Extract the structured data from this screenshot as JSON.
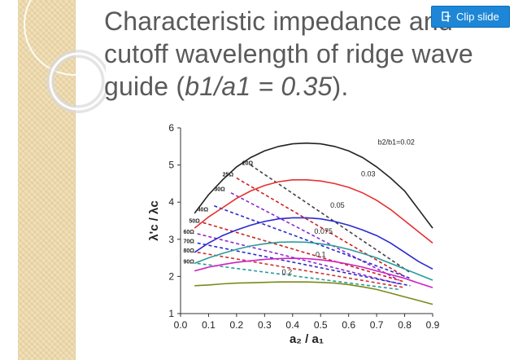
{
  "slide": {
    "title_part1": "Characteristic impedance and cutoff wavelength of ridge wave guide (",
    "title_italic": "b1/a1 = 0.35",
    "title_part2": ")."
  },
  "toolbar": {
    "clip_label": "Clip slide",
    "clip_icon": "clip-icon"
  },
  "colors": {
    "button": "#1d86d6",
    "sidebar": "#f1e0b8",
    "title": "#5a5a5a"
  },
  "chart_data": {
    "type": "line",
    "xlabel": "a₂ / a₁",
    "ylabel": "λ'c / λc",
    "xlim": [
      0.0,
      0.9
    ],
    "ylim": [
      1,
      6
    ],
    "x_ticks": [
      "0.0",
      "0.1",
      "0.2",
      "0.3",
      "0.4",
      "0.5",
      "0.6",
      "0.7",
      "0.8",
      "0.9"
    ],
    "y_ticks": [
      "1",
      "2",
      "3",
      "4",
      "5",
      "6"
    ],
    "solid_series": [
      {
        "name": "b2/b1=0.02",
        "color": "#222222",
        "x": [
          0.05,
          0.1,
          0.15,
          0.2,
          0.25,
          0.3,
          0.35,
          0.4,
          0.45,
          0.5,
          0.55,
          0.6,
          0.65,
          0.7,
          0.75,
          0.8,
          0.85,
          0.9
        ],
        "y": [
          3.7,
          4.2,
          4.6,
          4.95,
          5.2,
          5.38,
          5.5,
          5.57,
          5.59,
          5.57,
          5.5,
          5.38,
          5.2,
          4.95,
          4.65,
          4.3,
          3.8,
          3.3
        ]
      },
      {
        "name": "0.03",
        "color": "#e53030",
        "x": [
          0.05,
          0.1,
          0.15,
          0.2,
          0.25,
          0.3,
          0.35,
          0.4,
          0.45,
          0.5,
          0.55,
          0.6,
          0.65,
          0.7,
          0.75,
          0.8,
          0.85,
          0.9
        ],
        "y": [
          3.3,
          3.6,
          3.85,
          4.1,
          4.3,
          4.45,
          4.55,
          4.6,
          4.6,
          4.57,
          4.5,
          4.4,
          4.25,
          4.05,
          3.8,
          3.5,
          3.2,
          2.9
        ]
      },
      {
        "name": "0.05",
        "color": "#2a2ad0",
        "x": [
          0.05,
          0.1,
          0.15,
          0.2,
          0.25,
          0.3,
          0.35,
          0.4,
          0.45,
          0.5,
          0.55,
          0.6,
          0.65,
          0.7,
          0.75,
          0.8,
          0.85,
          0.9
        ],
        "y": [
          2.65,
          2.9,
          3.1,
          3.25,
          3.38,
          3.48,
          3.55,
          3.58,
          3.58,
          3.55,
          3.48,
          3.38,
          3.25,
          3.1,
          2.9,
          2.65,
          2.4,
          2.2
        ]
      },
      {
        "name": "0.075",
        "color": "#2a9a9a",
        "x": [
          0.05,
          0.1,
          0.15,
          0.2,
          0.25,
          0.3,
          0.35,
          0.4,
          0.45,
          0.5,
          0.55,
          0.6,
          0.65,
          0.7,
          0.75,
          0.8,
          0.85,
          0.9
        ],
        "y": [
          2.35,
          2.5,
          2.62,
          2.73,
          2.82,
          2.88,
          2.92,
          2.93,
          2.92,
          2.88,
          2.82,
          2.73,
          2.62,
          2.5,
          2.35,
          2.2,
          2.05,
          1.9
        ]
      },
      {
        "name": "0.1",
        "color": "#d020c0",
        "x": [
          0.05,
          0.1,
          0.15,
          0.2,
          0.25,
          0.3,
          0.35,
          0.4,
          0.45,
          0.5,
          0.55,
          0.6,
          0.65,
          0.7,
          0.75,
          0.8,
          0.85,
          0.9
        ],
        "y": [
          2.15,
          2.25,
          2.32,
          2.38,
          2.42,
          2.46,
          2.48,
          2.49,
          2.48,
          2.45,
          2.4,
          2.33,
          2.25,
          2.15,
          2.05,
          1.95,
          1.82,
          1.7
        ]
      },
      {
        "name": "0.2",
        "color": "#7a8a1a",
        "x": [
          0.05,
          0.1,
          0.15,
          0.2,
          0.25,
          0.3,
          0.35,
          0.4,
          0.45,
          0.5,
          0.55,
          0.6,
          0.65,
          0.7,
          0.75,
          0.8,
          0.85,
          0.9
        ],
        "y": [
          1.75,
          1.77,
          1.8,
          1.82,
          1.83,
          1.84,
          1.85,
          1.85,
          1.85,
          1.84,
          1.82,
          1.78,
          1.72,
          1.65,
          1.55,
          1.45,
          1.35,
          1.25
        ]
      }
    ],
    "dashed_series": [
      {
        "name": "20Ω",
        "color": "#444444",
        "x": [
          0.25,
          0.82
        ],
        "y": [
          5.0,
          2.1
        ]
      },
      {
        "name": "25Ω",
        "color": "#cc2222",
        "x": [
          0.2,
          0.8
        ],
        "y": [
          4.65,
          2.0
        ]
      },
      {
        "name": "30Ω",
        "color": "#8a2ad0",
        "x": [
          0.18,
          0.78
        ],
        "y": [
          4.25,
          1.9
        ]
      },
      {
        "name": "40Ω",
        "color": "#2a2ad0",
        "x": [
          0.12,
          0.82
        ],
        "y": [
          3.9,
          1.95
        ]
      },
      {
        "name": "50Ω",
        "color": "#cc2222",
        "x": [
          0.08,
          0.8
        ],
        "y": [
          3.45,
          1.85
        ]
      },
      {
        "name": "60Ω",
        "color": "#8a2ad0",
        "x": [
          0.06,
          0.78
        ],
        "y": [
          3.15,
          1.8
        ]
      },
      {
        "name": "70Ω",
        "color": "#2a2ad0",
        "x": [
          0.06,
          0.82
        ],
        "y": [
          2.9,
          1.75
        ]
      },
      {
        "name": "80Ω",
        "color": "#d03030",
        "x": [
          0.06,
          0.8
        ],
        "y": [
          2.65,
          1.7
        ]
      },
      {
        "name": "90Ω",
        "color": "#2a9a9a",
        "x": [
          0.06,
          0.78
        ],
        "y": [
          2.35,
          1.65
        ]
      }
    ],
    "series_labels": [
      {
        "text": "b2/b1=0.02",
        "x": 0.77,
        "y": 5.55
      },
      {
        "text": "0.03",
        "x": 0.67,
        "y": 4.7
      },
      {
        "text": "0.05",
        "x": 0.56,
        "y": 3.85
      },
      {
        "text": "0.075",
        "x": 0.51,
        "y": 3.15
      },
      {
        "text": "0.1",
        "x": 0.5,
        "y": 2.52
      },
      {
        "text": "0.2",
        "x": 0.38,
        "y": 2.05
      }
    ],
    "impedance_labels": [
      {
        "text": "20Ω",
        "x": 0.22,
        "y": 5.0
      },
      {
        "text": "25Ω",
        "x": 0.15,
        "y": 4.7
      },
      {
        "text": "30Ω",
        "x": 0.12,
        "y": 4.3
      },
      {
        "text": "40Ω",
        "x": 0.06,
        "y": 3.75
      },
      {
        "text": "50Ω",
        "x": 0.03,
        "y": 3.45
      },
      {
        "text": "60Ω",
        "x": 0.01,
        "y": 3.15
      },
      {
        "text": "70Ω",
        "x": 0.01,
        "y": 2.9
      },
      {
        "text": "80Ω",
        "x": 0.01,
        "y": 2.65
      },
      {
        "text": "90Ω",
        "x": 0.01,
        "y": 2.35
      }
    ]
  }
}
